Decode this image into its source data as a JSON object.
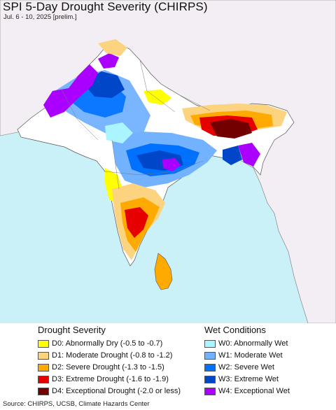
{
  "header": {
    "title": "SPI 5-Day Drought Severity (CHIRPS)",
    "subtitle": "Jul. 6 - 10, 2025 [prelim.]"
  },
  "legend": {
    "drought_heading": "Drought Severity",
    "wet_heading": "Wet Conditions",
    "drought": [
      {
        "label": "D0: Abnormally Dry (-0.5 to -0.7)",
        "color": "#ffff00"
      },
      {
        "label": "D1: Moderate Drought (-0.8 to -1.2)",
        "color": "#fcd37f"
      },
      {
        "label": "D2: Severe Drought (-1.3 to -1.5)",
        "color": "#ffaa00"
      },
      {
        "label": "D3: Extreme Drought (-1.6 to -1.9)",
        "color": "#e60000"
      },
      {
        "label": "D4: Exceptional Drought (-2.0 or less)",
        "color": "#730000"
      }
    ],
    "wet": [
      {
        "label": "W0: Abnormally Wet",
        "color": "#aaf5ff"
      },
      {
        "label": "W1: Moderate Wet",
        "color": "#73b2ff"
      },
      {
        "label": "W2: Severe Wet",
        "color": "#0070ff"
      },
      {
        "label": "W3: Extreme Wet",
        "color": "#0046c8"
      },
      {
        "label": "W4: Exceptional Wet",
        "color": "#aa00ff"
      }
    ]
  },
  "source": "Source: CHIRPS, UCSB, Climate Hazards Center",
  "colors": {
    "ocean": "#c9f1f7",
    "land_outside": "#f3eef3",
    "land_neutral": "#ffffff"
  }
}
